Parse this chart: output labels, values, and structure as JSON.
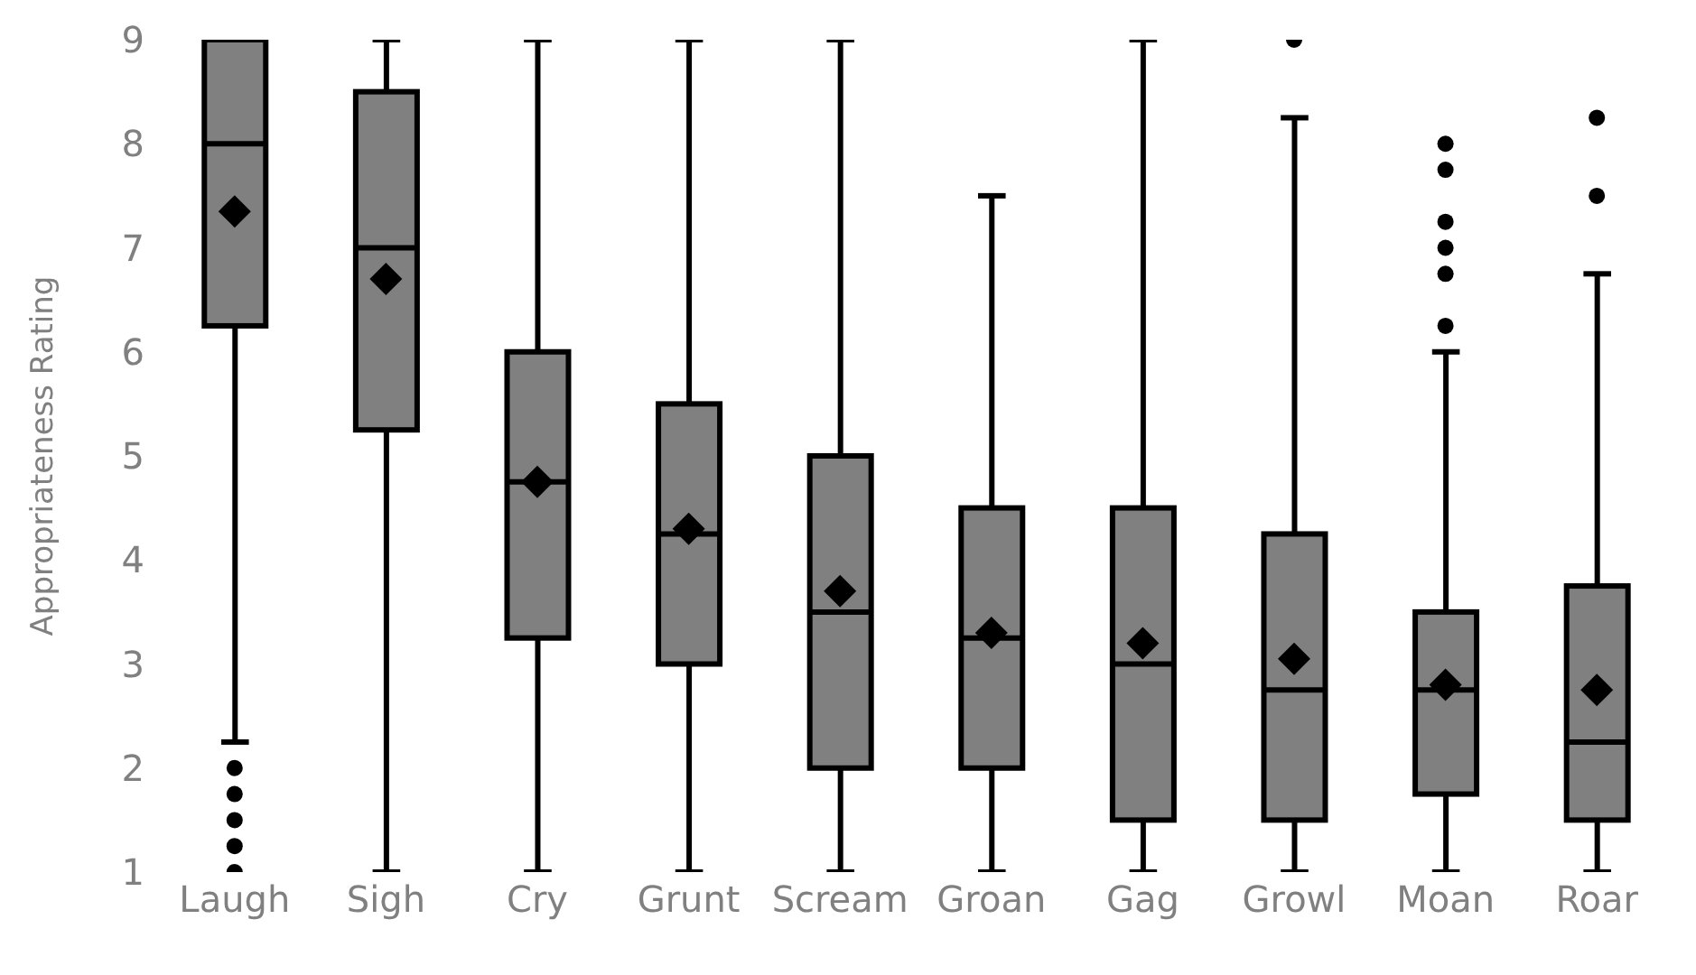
{
  "chart_data": {
    "type": "box",
    "ylabel": "Appropriateness Rating",
    "categories": [
      "Laugh",
      "Sigh",
      "Cry",
      "Grunt",
      "Scream",
      "Groan",
      "Gag",
      "Growl",
      "Moan",
      "Roar"
    ],
    "color": "#808080",
    "ylim": [
      1,
      9
    ],
    "yticks": [
      1,
      2,
      3,
      4,
      5,
      6,
      7,
      8,
      9
    ],
    "boxes": [
      {
        "low": 2.25,
        "q1": 6.25,
        "median": 8,
        "q3": 9,
        "high": 9,
        "mean": 7.35,
        "outliers": [
          2,
          1.75,
          1.5,
          1.25,
          1
        ]
      },
      {
        "low": 1,
        "q1": 5.25,
        "median": 7,
        "q3": 8.5,
        "high": 9,
        "mean": 6.7
      },
      {
        "low": 1,
        "q1": 3.25,
        "median": 4.75,
        "q3": 6,
        "high": 9,
        "mean": 4.75
      },
      {
        "low": 1,
        "q1": 3,
        "median": 4.25,
        "q3": 5.5,
        "high": 9,
        "mean": 4.3
      },
      {
        "low": 1,
        "q1": 2,
        "median": 3.5,
        "q3": 5,
        "high": 9,
        "mean": 3.7
      },
      {
        "low": 1,
        "q1": 2,
        "median": 3.25,
        "q3": 4.5,
        "high": 7.5,
        "mean": 3.3
      },
      {
        "low": 1,
        "q1": 1.5,
        "median": 3,
        "q3": 4.5,
        "high": 9,
        "mean": 3.2
      },
      {
        "low": 1,
        "q1": 1.5,
        "median": 2.75,
        "q3": 4.25,
        "high": 8.25,
        "mean": 3.05,
        "outliers": [
          9
        ]
      },
      {
        "low": 1,
        "q1": 1.75,
        "median": 2.75,
        "q3": 3.5,
        "high": 6,
        "mean": 2.8,
        "outliers": [
          6.25,
          6.75,
          7,
          7.25,
          7.75,
          8
        ]
      },
      {
        "low": 1,
        "q1": 1.5,
        "median": 2.25,
        "q3": 3.75,
        "high": 6.75,
        "mean": 2.75,
        "outliers": [
          7.5,
          8.25
        ]
      }
    ]
  }
}
